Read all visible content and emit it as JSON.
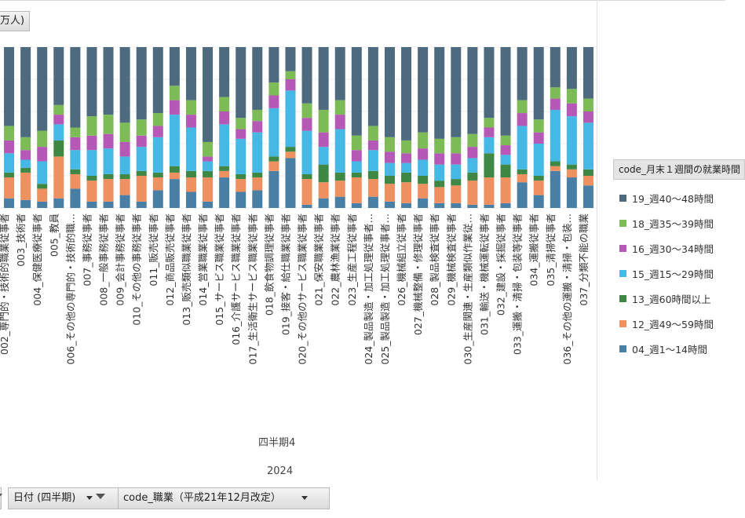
{
  "units_label": "万人)",
  "legend_title": "code_月末１週間の就業時間",
  "filters": {
    "date_label": "日付 (四半期)",
    "occupation_label": "code_職業（平成21年12月改定）"
  },
  "colors": {
    "s19": "#4d6a7e",
    "s18": "#7dbb56",
    "s16": "#b659b6",
    "s15": "#46b8e6",
    "s13": "#3e8745",
    "s12": "#ef9060",
    "s04": "#4a7fa5"
  },
  "chart_data": {
    "type": "bar",
    "stacked": true,
    "percent": true,
    "quarter_label": "四半期4",
    "year_label": "2024",
    "categories": [
      "002_専門的・技術的職業従事者",
      "003_技術者",
      "004_保健医療従事者",
      "005_教員",
      "006_その他の専門的・技術的職…",
      "007_事務従事者",
      "008_一般事務従事者",
      "009_会計事務従事者",
      "010_その他の事務従事者",
      "011_販売従事者",
      "012_商品販売従事者",
      "013_販売類似職業従事者",
      "014_営業職業従事者",
      "015_サービス職業従事者",
      "016_介護サービス職業従事者",
      "017_生活衛生サービス職業従事者",
      "018_飲食物調理従事者",
      "019_接客・給仕職業従事者",
      "020_その他のサービス職業従事者",
      "021_保安職業従事者",
      "022_農林漁業従事者",
      "023_生産工程従事者",
      "024_製品製造・加工処理従事者…",
      "025_製品製造・加工処理従事者…",
      "026_機械組立従事者",
      "027_機械整備・修理従事者",
      "028_製品検査従事者",
      "029_機械検査従事者",
      "030_生産関連・生産類似作業従…",
      "031_輸送・機械運転従事者",
      "032_建設・採掘従事者",
      "033_運搬・清掃・包装等従事者",
      "034_運搬従事者",
      "035_清掃従事者",
      "036_その他の運搬・清掃・包装…",
      "037_分類不能の職業"
    ],
    "series": [
      {
        "name": "04_週1～14時間",
        "key": "s04",
        "values": [
          6,
          5,
          4,
          6,
          12,
          4,
          4,
          8,
          4,
          11,
          18,
          10,
          4,
          19,
          10,
          11,
          23,
          31,
          2,
          6,
          7,
          3,
          7,
          4,
          3,
          6,
          3,
          3,
          2,
          2,
          3,
          16,
          8,
          23,
          19,
          14
        ]
      },
      {
        "name": "12_週49～59時間",
        "key": "s12",
        "values": [
          13,
          17,
          8,
          26,
          9,
          13,
          14,
          10,
          16,
          8,
          4,
          9,
          15,
          4,
          8,
          8,
          6,
          4,
          16,
          10,
          10,
          16,
          11,
          11,
          13,
          9,
          10,
          11,
          15,
          17,
          16,
          5,
          9,
          3,
          5,
          6
        ]
      },
      {
        "name": "13_週60時間以上",
        "key": "s13",
        "values": [
          3,
          3,
          3,
          10,
          3,
          3,
          3,
          3,
          3,
          3,
          4,
          4,
          4,
          3,
          3,
          3,
          3,
          3,
          3,
          11,
          5,
          3,
          5,
          5,
          6,
          5,
          4,
          4,
          5,
          15,
          8,
          3,
          3,
          3,
          3,
          4
        ]
      },
      {
        "name": "15_週15～29時間",
        "key": "s15",
        "values": [
          12,
          5,
          14,
          10,
          12,
          16,
          16,
          11,
          15,
          22,
          32,
          27,
          6,
          26,
          22,
          25,
          30,
          35,
          27,
          11,
          27,
          7,
          13,
          8,
          6,
          10,
          10,
          9,
          9,
          10,
          6,
          27,
          20,
          32,
          30,
          29
        ]
      },
      {
        "name": "16_週30～34時間",
        "key": "s16",
        "values": [
          8,
          6,
          9,
          6,
          8,
          9,
          9,
          9,
          7,
          7,
          9,
          8,
          3,
          8,
          6,
          7,
          8,
          7,
          8,
          9,
          9,
          7,
          6,
          7,
          6,
          7,
          7,
          7,
          7,
          6,
          6,
          8,
          7,
          7,
          8,
          7
        ]
      },
      {
        "name": "18_週35～39時間",
        "key": "s18",
        "values": [
          9,
          8,
          10,
          6,
          6,
          12,
          12,
          12,
          10,
          8,
          9,
          9,
          9,
          9,
          7,
          7,
          8,
          5,
          9,
          14,
          9,
          9,
          9,
          9,
          8,
          10,
          9,
          10,
          8,
          6,
          6,
          8,
          8,
          7,
          9,
          8
        ]
      },
      {
        "name": "19_週40～48時間",
        "key": "s19",
        "values": [
          49,
          56,
          52,
          36,
          50,
          43,
          42,
          47,
          45,
          41,
          24,
          33,
          59,
          31,
          44,
          39,
          22,
          15,
          35,
          39,
          33,
          55,
          49,
          56,
          58,
          53,
          57,
          56,
          54,
          44,
          55,
          33,
          45,
          25,
          26,
          32
        ]
      }
    ]
  }
}
